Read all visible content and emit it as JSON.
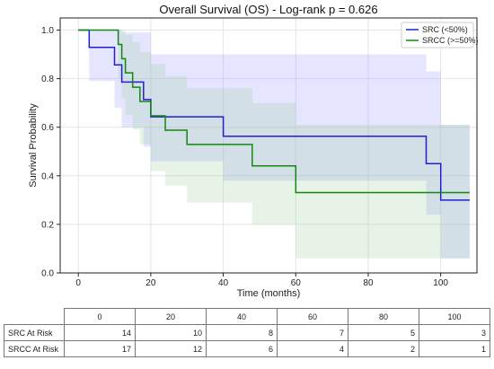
{
  "chart_data": {
    "type": "line",
    "title": "Overall Survival (OS) - Log-rank p = 0.626",
    "xlabel": "Time (months)",
    "ylabel": "Survival Probability",
    "xlim": [
      -5,
      110
    ],
    "ylim": [
      0,
      1.05
    ],
    "xticks": [
      0,
      20,
      40,
      60,
      80,
      100
    ],
    "yticks": [
      0.0,
      0.2,
      0.4,
      0.6,
      0.8,
      1.0
    ],
    "grid": true,
    "legend_position": "top-right",
    "series": [
      {
        "name": "SRC (<50%)",
        "color": "#1f1fd6",
        "band_color": "#9999ff",
        "steps": [
          [
            0,
            1.0
          ],
          [
            3,
            0.929
          ],
          [
            10,
            0.857
          ],
          [
            12,
            0.786
          ],
          [
            16,
            0.786
          ],
          [
            18,
            0.714
          ],
          [
            20,
            0.643
          ],
          [
            40,
            0.563
          ],
          [
            96,
            0.45
          ],
          [
            100,
            0.3
          ],
          [
            108,
            0.3
          ]
        ],
        "ci_upper": [
          [
            0,
            1.0
          ],
          [
            3,
            1.0
          ],
          [
            10,
            1.0
          ],
          [
            12,
            0.99
          ],
          [
            16,
            0.99
          ],
          [
            18,
            0.99
          ],
          [
            20,
            0.9
          ],
          [
            40,
            0.9
          ],
          [
            96,
            0.83
          ],
          [
            100,
            0.61
          ],
          [
            108,
            0.61
          ]
        ],
        "ci_lower": [
          [
            0,
            1.0
          ],
          [
            3,
            0.79
          ],
          [
            10,
            0.68
          ],
          [
            12,
            0.6
          ],
          [
            16,
            0.6
          ],
          [
            18,
            0.52
          ],
          [
            20,
            0.46
          ],
          [
            40,
            0.38
          ],
          [
            96,
            0.24
          ],
          [
            100,
            0.06
          ],
          [
            108,
            0.06
          ]
        ]
      },
      {
        "name": "SRCC (>=50%)",
        "color": "#118811",
        "band_color": "#9ad09a",
        "steps": [
          [
            0,
            1.0
          ],
          [
            11,
            0.941
          ],
          [
            12,
            0.882
          ],
          [
            13,
            0.824
          ],
          [
            15,
            0.765
          ],
          [
            17,
            0.706
          ],
          [
            20,
            0.647
          ],
          [
            24,
            0.588
          ],
          [
            30,
            0.529
          ],
          [
            48,
            0.441
          ],
          [
            60,
            0.331
          ],
          [
            108,
            0.331
          ]
        ],
        "ci_upper": [
          [
            0,
            1.0
          ],
          [
            11,
            1.0
          ],
          [
            12,
            1.0
          ],
          [
            13,
            0.98
          ],
          [
            15,
            0.95
          ],
          [
            17,
            0.91
          ],
          [
            20,
            0.86
          ],
          [
            24,
            0.81
          ],
          [
            30,
            0.76
          ],
          [
            48,
            0.7
          ],
          [
            60,
            0.61
          ],
          [
            108,
            0.61
          ]
        ],
        "ci_lower": [
          [
            0,
            1.0
          ],
          [
            11,
            0.8
          ],
          [
            12,
            0.72
          ],
          [
            13,
            0.65
          ],
          [
            15,
            0.59
          ],
          [
            17,
            0.53
          ],
          [
            20,
            0.42
          ],
          [
            24,
            0.36
          ],
          [
            30,
            0.29
          ],
          [
            48,
            0.2
          ],
          [
            60,
            0.06
          ],
          [
            108,
            0.06
          ]
        ]
      }
    ],
    "risk_table": {
      "times": [
        "0",
        "20",
        "40",
        "60",
        "80",
        "100"
      ],
      "rows": [
        {
          "label": "SRC At Risk",
          "values": [
            "14",
            "10",
            "8",
            "7",
            "5",
            "3"
          ]
        },
        {
          "label": "SRCC At Risk",
          "values": [
            "17",
            "12",
            "6",
            "4",
            "2",
            "1"
          ]
        }
      ]
    }
  }
}
